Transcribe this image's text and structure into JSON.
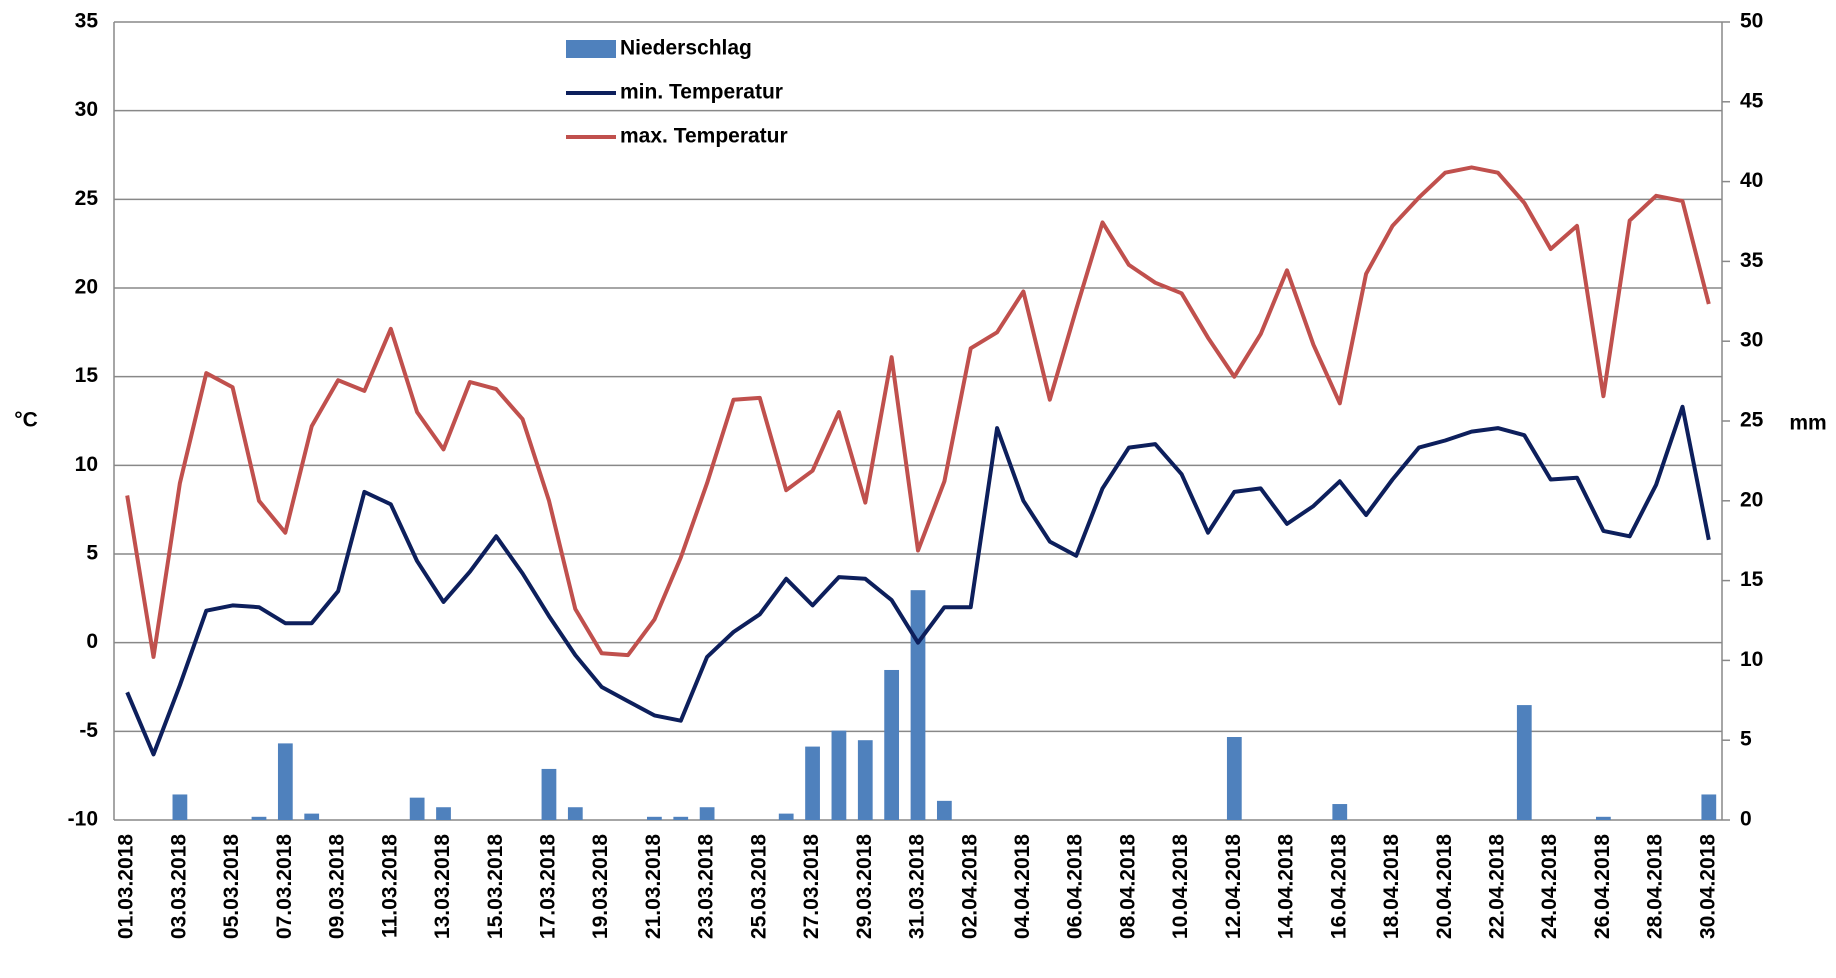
{
  "chart_data": {
    "type": "bar-line",
    "ylabel": "°C",
    "y2label": "mm",
    "categories": [
      "01.03.2018",
      null,
      "03.03.2018",
      null,
      "05.03.2018",
      null,
      "07.03.2018",
      null,
      "09.03.2018",
      null,
      "11.03.2018",
      null,
      "13.03.2018",
      null,
      "15.03.2018",
      null,
      "17.03.2018",
      null,
      "19.03.2018",
      null,
      "21.03.2018",
      null,
      "23.03.2018",
      null,
      "25.03.2018",
      null,
      "27.03.2018",
      null,
      "29.03.2018",
      null,
      "31.03.2018",
      null,
      "02.04.2018",
      null,
      "04.04.2018",
      null,
      "06.04.2018",
      null,
      "08.04.2018",
      null,
      "10.04.2018",
      null,
      "12.04.2018",
      null,
      "14.04.2018",
      null,
      "16.04.2018",
      null,
      "18.04.2018",
      null,
      "20.04.2018",
      null,
      "22.04.2018",
      null,
      "24.04.2018",
      null,
      "26.04.2018",
      null,
      "28.04.2018",
      null,
      "30.04.2018"
    ],
    "series": [
      {
        "name": "Niederschlag",
        "type": "bar",
        "axis": "y2",
        "color": "#4f81bd",
        "values": [
          0,
          0,
          1.6,
          0,
          0,
          0.2,
          4.8,
          0.4,
          0,
          0,
          0,
          1.4,
          0.8,
          0,
          0,
          0,
          3.2,
          0.8,
          0,
          0,
          0.2,
          0.2,
          0.8,
          0,
          0,
          0.4,
          4.6,
          5.6,
          5,
          9.4,
          14.4,
          1.2,
          0,
          0,
          0,
          0,
          0,
          0,
          0,
          0,
          0,
          0,
          5.2,
          0,
          0,
          0,
          1,
          0,
          0,
          0,
          0,
          0,
          0,
          7.2,
          0,
          0,
          0.2,
          0,
          0,
          0,
          1.6
        ]
      },
      {
        "name": "min. Temperatur",
        "type": "line",
        "axis": "y",
        "color": "#0d1f5c",
        "values": [
          -2.8,
          -6.3,
          -2.4,
          1.8,
          2.1,
          2,
          1.1,
          1.1,
          2.9,
          8.5,
          7.8,
          4.6,
          2.3,
          4,
          6,
          3.9,
          1.5,
          -0.7,
          -2.5,
          -3.3,
          -4.1,
          -4.4,
          -0.8,
          0.6,
          1.6,
          3.6,
          2.1,
          3.7,
          3.6,
          2.4,
          0,
          2,
          2,
          12.1,
          8,
          5.7,
          4.9,
          8.7,
          11,
          11.2,
          9.5,
          6.2,
          8.5,
          8.7,
          6.7,
          7.7,
          9.1,
          7.2,
          9.2,
          11,
          11.4,
          11.9,
          12.1,
          11.7,
          9.2,
          9.3,
          6.3,
          6,
          8.9,
          13.3,
          5.8
        ]
      },
      {
        "name": "max. Temperatur",
        "type": "line",
        "axis": "y",
        "color": "#c0504d",
        "values": [
          8.3,
          -0.8,
          9,
          15.2,
          14.4,
          8,
          6.2,
          12.2,
          14.8,
          14.2,
          17.7,
          13,
          10.9,
          14.7,
          14.3,
          12.6,
          8,
          1.9,
          -0.6,
          -0.7,
          1.3,
          4.8,
          9,
          13.7,
          13.8,
          8.6,
          9.7,
          13,
          7.9,
          16.1,
          5.2,
          9.1,
          16.6,
          17.5,
          19.8,
          13.7,
          18.8,
          23.7,
          21.3,
          20.3,
          19.7,
          17.2,
          15,
          17.4,
          21,
          16.8,
          13.5,
          20.8,
          23.5,
          25.1,
          26.5,
          26.8,
          26.5,
          24.8,
          22.2,
          23.5,
          13.9,
          23.8,
          25.2,
          24.9,
          19.1
        ]
      }
    ],
    "ylim": [
      -10,
      35
    ],
    "yticks": [
      -10,
      -5,
      0,
      5,
      10,
      15,
      20,
      25,
      30,
      35
    ],
    "y2lim": [
      0,
      50
    ],
    "y2ticks": [
      0,
      5,
      10,
      15,
      20,
      25,
      30,
      35,
      40,
      45,
      50
    ],
    "grid": true,
    "legend": "top"
  }
}
